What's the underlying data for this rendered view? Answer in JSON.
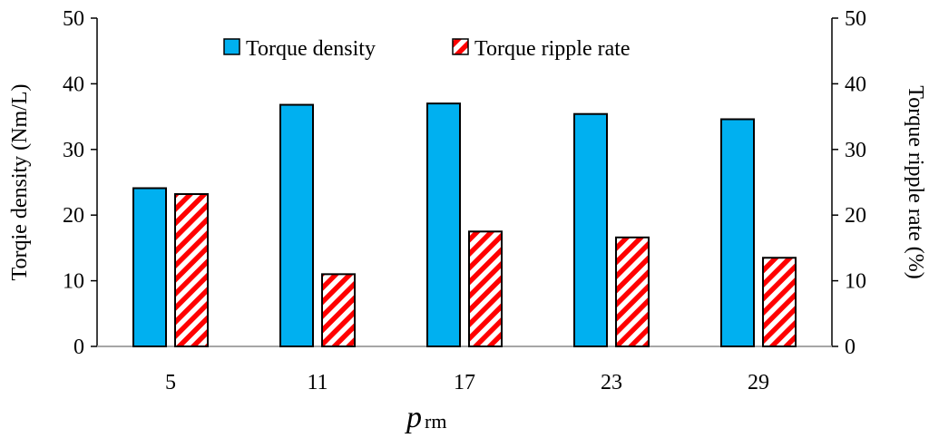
{
  "chart_data": {
    "type": "bar",
    "categories": [
      "5",
      "11",
      "17",
      "23",
      "29"
    ],
    "series": [
      {
        "name": "Torque density",
        "values": [
          24.1,
          36.8,
          37.0,
          35.4,
          34.6
        ],
        "axis": "left",
        "color": "#00b0f0",
        "pattern": "solid"
      },
      {
        "name": "Torque ripple rate",
        "values": [
          23.2,
          11.0,
          17.5,
          16.6,
          13.5
        ],
        "axis": "right",
        "color": "#ff0000",
        "pattern": "diagonal-stripes"
      }
    ],
    "ylabel": "Torqie density (Nm/L)",
    "y2label": "Torque ripple rate (%)",
    "xlabel_main": "p",
    "xlabel_sub": "rm",
    "ylim": [
      0,
      50
    ],
    "y2lim": [
      0,
      50
    ],
    "yticks": [
      "0",
      "10",
      "20",
      "30",
      "40",
      "50"
    ],
    "y2ticks": [
      "0",
      "10",
      "20",
      "30",
      "40",
      "50"
    ],
    "grid": false,
    "legend_position": "top-center"
  }
}
